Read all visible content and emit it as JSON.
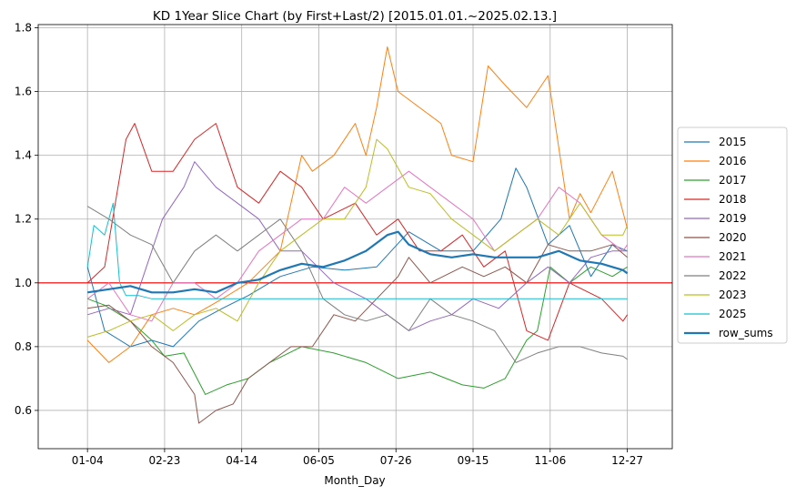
{
  "chart_data": {
    "type": "line",
    "title": "KD 1Year Slice Chart (by First+Last/2) [2015.01.01.~2025.02.13.]",
    "xlabel": "Month_Day",
    "ylabel": "",
    "x_ticks": [
      "01-04",
      "02-23",
      "04-14",
      "06-05",
      "07-26",
      "09-15",
      "11-06",
      "12-27"
    ],
    "x_tick_index": [
      0,
      36,
      72,
      108,
      144,
      180,
      216,
      252
    ],
    "x_range": [
      -23,
      273
    ],
    "ylim": [
      0.48,
      1.81
    ],
    "y_ticks": [
      0.6,
      0.8,
      1.0,
      1.2,
      1.4,
      1.6,
      1.8
    ],
    "y_tick_labels": [
      "0.6",
      "0.8",
      "1.0",
      "1.2",
      "1.4",
      "1.6",
      "1.8"
    ],
    "grid": true,
    "legend_position": "right-outside",
    "reference_line": {
      "y": 1.0,
      "color": "#ff0000"
    },
    "series": [
      {
        "name": "2015",
        "color": "#1f77b4",
        "width": 1,
        "x": [
          0,
          8,
          20,
          30,
          40,
          52,
          63,
          75,
          90,
          105,
          120,
          135,
          150,
          165,
          180,
          193,
          200,
          205,
          215,
          225,
          235,
          245,
          252
        ],
        "values": [
          1.05,
          0.85,
          0.8,
          0.82,
          0.8,
          0.88,
          0.92,
          0.96,
          1.02,
          1.05,
          1.04,
          1.05,
          1.16,
          1.1,
          1.1,
          1.2,
          1.36,
          1.3,
          1.12,
          1.18,
          1.02,
          1.12,
          1.1
        ]
      },
      {
        "name": "2016",
        "color": "#ff7f0e",
        "width": 1,
        "x": [
          0,
          10,
          20,
          30,
          40,
          50,
          63,
          75,
          90,
          100,
          105,
          115,
          125,
          130,
          135,
          140,
          145,
          155,
          165,
          170,
          180,
          187,
          195,
          205,
          215,
          225,
          230,
          235,
          245,
          252
        ],
        "values": [
          0.82,
          0.75,
          0.8,
          0.9,
          0.92,
          0.9,
          0.95,
          1.0,
          1.1,
          1.4,
          1.35,
          1.4,
          1.5,
          1.4,
          1.55,
          1.74,
          1.6,
          1.55,
          1.5,
          1.4,
          1.38,
          1.68,
          1.62,
          1.55,
          1.65,
          1.2,
          1.28,
          1.22,
          1.35,
          1.17
        ]
      },
      {
        "name": "2017",
        "color": "#2ca02c",
        "width": 1,
        "x": [
          0,
          8,
          20,
          30,
          36,
          45,
          55,
          65,
          75,
          85,
          100,
          115,
          130,
          145,
          160,
          175,
          185,
          195,
          205,
          210,
          216,
          225,
          235,
          245,
          252
        ],
        "values": [
          0.95,
          0.93,
          0.88,
          0.82,
          0.77,
          0.78,
          0.65,
          0.68,
          0.7,
          0.75,
          0.8,
          0.78,
          0.75,
          0.7,
          0.72,
          0.68,
          0.67,
          0.7,
          0.82,
          0.85,
          1.05,
          1.0,
          1.05,
          1.02,
          1.05
        ]
      },
      {
        "name": "2018",
        "color": "#d62728",
        "width": 1,
        "x": [
          0,
          8,
          18,
          22,
          30,
          40,
          50,
          60,
          70,
          80,
          90,
          100,
          110,
          125,
          135,
          145,
          155,
          165,
          175,
          185,
          195,
          205,
          215,
          225,
          240,
          250,
          252
        ],
        "values": [
          1.0,
          1.05,
          1.45,
          1.5,
          1.35,
          1.35,
          1.45,
          1.5,
          1.3,
          1.25,
          1.35,
          1.3,
          1.2,
          1.25,
          1.15,
          1.2,
          1.1,
          1.1,
          1.15,
          1.05,
          1.1,
          0.85,
          0.82,
          1.0,
          0.95,
          0.88,
          0.9
        ]
      },
      {
        "name": "2019",
        "color": "#9467bd",
        "width": 1,
        "x": [
          0,
          10,
          20,
          30,
          35,
          45,
          50,
          60,
          70,
          80,
          90,
          100,
          115,
          130,
          140,
          150,
          160,
          170,
          180,
          192,
          205,
          215,
          225,
          235,
          245,
          252
        ],
        "values": [
          0.9,
          0.92,
          0.9,
          1.1,
          1.2,
          1.3,
          1.38,
          1.3,
          1.25,
          1.2,
          1.1,
          1.1,
          1.0,
          0.95,
          0.9,
          0.85,
          0.88,
          0.9,
          0.95,
          0.92,
          1.0,
          1.05,
          1.0,
          1.08,
          1.1,
          1.1
        ]
      },
      {
        "name": "2020",
        "color": "#8c564b",
        "width": 1,
        "x": [
          0,
          10,
          20,
          30,
          40,
          50,
          52,
          60,
          68,
          75,
          85,
          95,
          105,
          115,
          125,
          135,
          145,
          150,
          160,
          175,
          185,
          195,
          205,
          215,
          225,
          235,
          245,
          252
        ],
        "values": [
          0.92,
          0.93,
          0.88,
          0.8,
          0.75,
          0.65,
          0.56,
          0.6,
          0.62,
          0.7,
          0.75,
          0.8,
          0.8,
          0.9,
          0.88,
          0.95,
          1.02,
          1.08,
          1.0,
          1.05,
          1.02,
          1.05,
          1.0,
          1.12,
          1.1,
          1.1,
          1.12,
          1.08
        ]
      },
      {
        "name": "2021",
        "color": "#e377c2",
        "width": 1,
        "x": [
          0,
          10,
          20,
          30,
          40,
          50,
          60,
          70,
          80,
          90,
          100,
          110,
          120,
          130,
          140,
          150,
          160,
          170,
          180,
          190,
          200,
          210,
          220,
          230,
          240,
          250,
          252
        ],
        "values": [
          0.95,
          1.0,
          0.9,
          0.88,
          1.0,
          1.0,
          0.95,
          1.0,
          1.1,
          1.15,
          1.2,
          1.2,
          1.3,
          1.25,
          1.3,
          1.35,
          1.3,
          1.25,
          1.2,
          1.1,
          1.15,
          1.2,
          1.3,
          1.25,
          1.15,
          1.1,
          1.12
        ]
      },
      {
        "name": "2022",
        "color": "#7f7f7f",
        "width": 1,
        "x": [
          0,
          10,
          20,
          30,
          40,
          50,
          60,
          70,
          80,
          90,
          100,
          110,
          120,
          130,
          140,
          150,
          160,
          170,
          180,
          190,
          200,
          210,
          220,
          230,
          240,
          250,
          252
        ],
        "values": [
          1.24,
          1.2,
          1.15,
          1.12,
          1.0,
          1.1,
          1.15,
          1.1,
          1.15,
          1.2,
          1.1,
          0.95,
          0.9,
          0.88,
          0.9,
          0.85,
          0.95,
          0.9,
          0.88,
          0.85,
          0.75,
          0.78,
          0.8,
          0.8,
          0.78,
          0.77,
          0.76
        ]
      },
      {
        "name": "2023",
        "color": "#bcbd22",
        "width": 1,
        "x": [
          0,
          10,
          20,
          30,
          40,
          50,
          60,
          70,
          80,
          90,
          100,
          110,
          120,
          130,
          135,
          140,
          150,
          160,
          170,
          180,
          190,
          200,
          210,
          220,
          230,
          240,
          250,
          252
        ],
        "values": [
          0.83,
          0.85,
          0.88,
          0.9,
          0.85,
          0.9,
          0.92,
          0.88,
          1.0,
          1.1,
          1.15,
          1.2,
          1.2,
          1.3,
          1.45,
          1.42,
          1.3,
          1.28,
          1.2,
          1.15,
          1.1,
          1.15,
          1.2,
          1.15,
          1.25,
          1.15,
          1.15,
          1.18
        ]
      },
      {
        "name": "2025",
        "color": "#17becf",
        "width": 1,
        "x": [
          0,
          3,
          8,
          12,
          15,
          18,
          24,
          30,
          36,
          45,
          60,
          80,
          100,
          120,
          150,
          180,
          210,
          240,
          252
        ],
        "values": [
          1.05,
          1.18,
          1.15,
          1.25,
          1.0,
          0.96,
          0.96,
          0.95,
          0.95,
          0.95,
          0.95,
          0.95,
          0.95,
          0.95,
          0.95,
          0.95,
          0.95,
          0.95,
          0.95
        ]
      },
      {
        "name": "row_sums",
        "color": "#1f77b4",
        "width": 2.2,
        "x": [
          0,
          10,
          20,
          30,
          40,
          50,
          60,
          70,
          80,
          90,
          100,
          110,
          120,
          130,
          140,
          145,
          150,
          160,
          170,
          180,
          190,
          200,
          210,
          220,
          230,
          240,
          250,
          252
        ],
        "values": [
          0.97,
          0.98,
          0.99,
          0.97,
          0.97,
          0.98,
          0.97,
          1.0,
          1.01,
          1.04,
          1.06,
          1.05,
          1.07,
          1.1,
          1.15,
          1.16,
          1.12,
          1.09,
          1.08,
          1.09,
          1.08,
          1.08,
          1.08,
          1.1,
          1.07,
          1.06,
          1.04,
          1.03
        ]
      }
    ]
  }
}
